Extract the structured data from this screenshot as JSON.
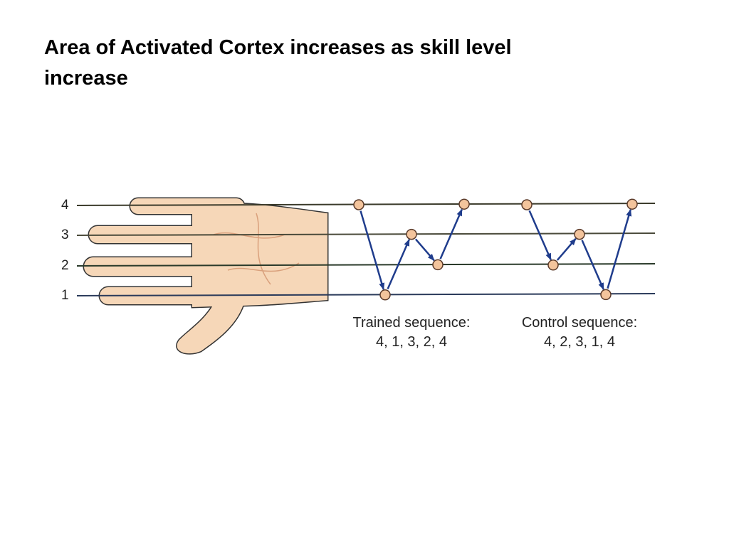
{
  "title_lines": [
    "Area of Activated Cortex increases as skill level",
    "increase"
  ],
  "finger_labels": [
    "4",
    "3",
    "2",
    "1"
  ],
  "sequences": [
    {
      "title": "Trained sequence:",
      "order": "4, 1, 3, 2, 4"
    },
    {
      "title": "Control sequence:",
      "order": "4, 2, 3, 1, 4"
    }
  ]
}
